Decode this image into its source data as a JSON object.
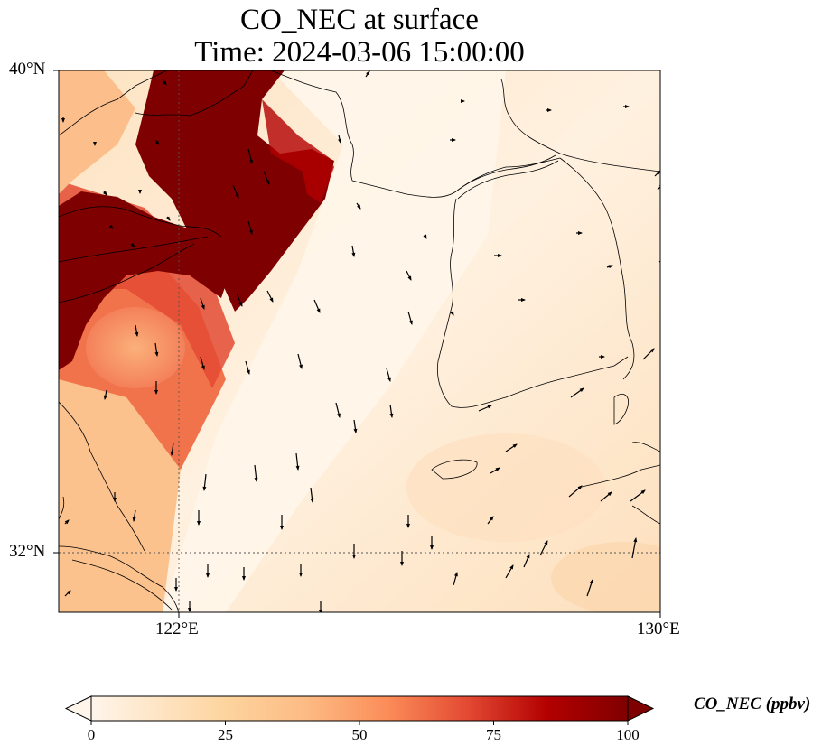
{
  "title": {
    "line1": "CO_NEC at surface",
    "line2": "Time: 2024-03-06 15:00:00"
  },
  "map": {
    "lat_labels": [
      "40°N",
      "32°N"
    ],
    "lon_labels": [
      "122°E",
      "130°E"
    ],
    "extent": {
      "lon_min": 120,
      "lon_max": 130,
      "lat_min": 31,
      "lat_max": 40
    },
    "gridlines": {
      "lon": [
        122
      ],
      "lat": [
        32
      ],
      "style": "dotted"
    }
  },
  "colorbar": {
    "label": "CO_NEC (ppbv)",
    "ticks": [
      "0",
      "25",
      "50",
      "75",
      "100"
    ],
    "min": 0,
    "max": 100,
    "colormap": [
      "#fff5eb",
      "#fdd49e",
      "#fdbb84",
      "#fc8d59",
      "#e34a33",
      "#b30000",
      "#7f0000"
    ],
    "extend": "both"
  }
}
